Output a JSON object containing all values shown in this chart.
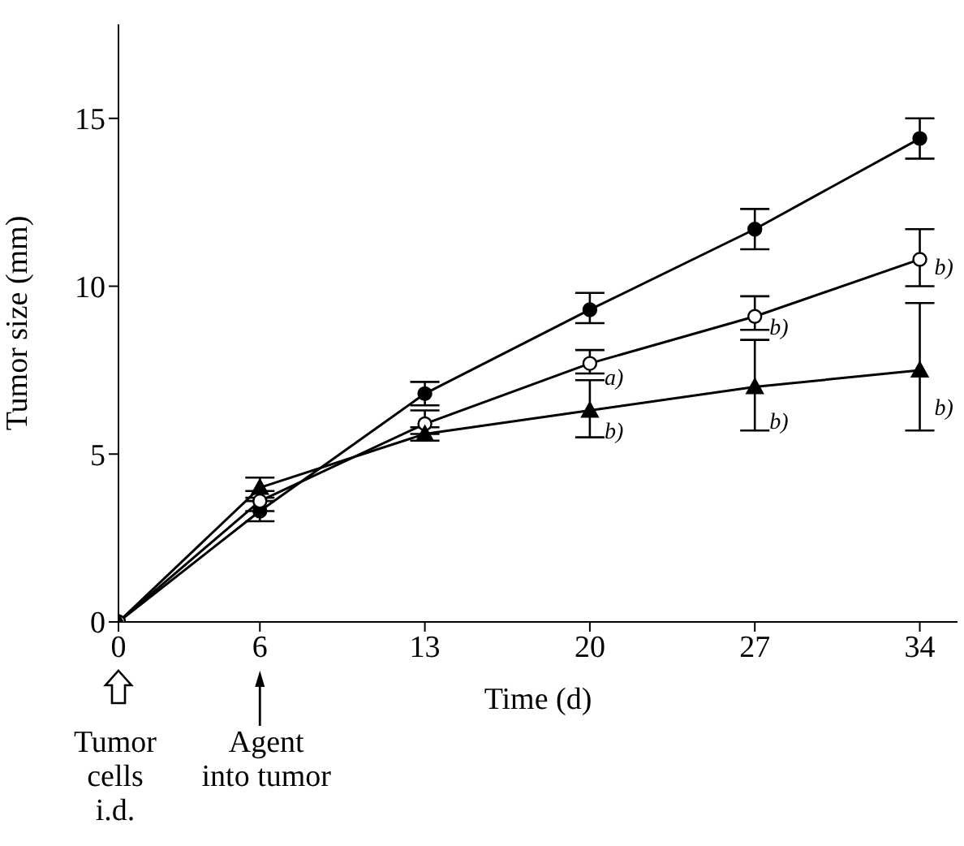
{
  "chart_data": {
    "type": "line",
    "xlabel": "Time (d)",
    "ylabel": "Tumor size (mm)",
    "x": [
      0,
      6,
      13,
      20,
      27,
      34
    ],
    "xlim": [
      0,
      35.6
    ],
    "xticks": [
      0,
      6,
      13,
      20,
      27,
      34
    ],
    "ylim": [
      0,
      17.8
    ],
    "yticks": [
      0,
      5,
      10,
      15
    ],
    "series": [
      {
        "color": "#000000",
        "marker": "circle",
        "values": [
          0,
          3.3,
          6.8,
          9.3,
          11.7,
          14.4
        ],
        "errors": [
          null,
          [
            3.0,
            3.6
          ],
          [
            6.45,
            7.15
          ],
          [
            8.9,
            9.8
          ],
          [
            11.1,
            12.3
          ],
          [
            13.8,
            15.0
          ]
        ]
      },
      {
        "color": "#000000",
        "colors": [
          "#ffffff",
          "#ffffff",
          "#ffffff",
          "#ffffff",
          "#ffffff",
          "#ffffff"
        ],
        "marker": "circle",
        "values": [
          0,
          3.6,
          5.9,
          7.7,
          9.1,
          10.8
        ],
        "errors": [
          null,
          [
            3.3,
            3.9
          ],
          [
            5.6,
            6.3
          ],
          [
            7.4,
            8.1
          ],
          [
            8.7,
            9.7
          ],
          [
            10.0,
            11.7
          ]
        ]
      },
      {
        "color": "#000000",
        "marker": "triangle",
        "values": [
          0,
          4.0,
          5.6,
          6.3,
          7.0,
          7.5
        ],
        "errors": [
          null,
          [
            3.7,
            4.3
          ],
          [
            5.4,
            5.8
          ],
          [
            5.5,
            7.2
          ],
          [
            5.7,
            8.4
          ],
          [
            5.7,
            9.5
          ]
        ]
      }
    ],
    "annotations": [
      {
        "text": "a)",
        "x": 20,
        "y": 7.3
      },
      {
        "text": "b)",
        "x": 20,
        "y": 5.7
      },
      {
        "text": "b)",
        "x": 27,
        "y": 8.8
      },
      {
        "text": "b)",
        "x": 27,
        "y": 6.0
      },
      {
        "text": "b)",
        "x": 34,
        "y": 10.6
      },
      {
        "text": "b)",
        "x": 34,
        "y": 6.4
      },
      "Tumor\ncells\ni.d.",
      "Agent\ninto tumor"
    ]
  }
}
